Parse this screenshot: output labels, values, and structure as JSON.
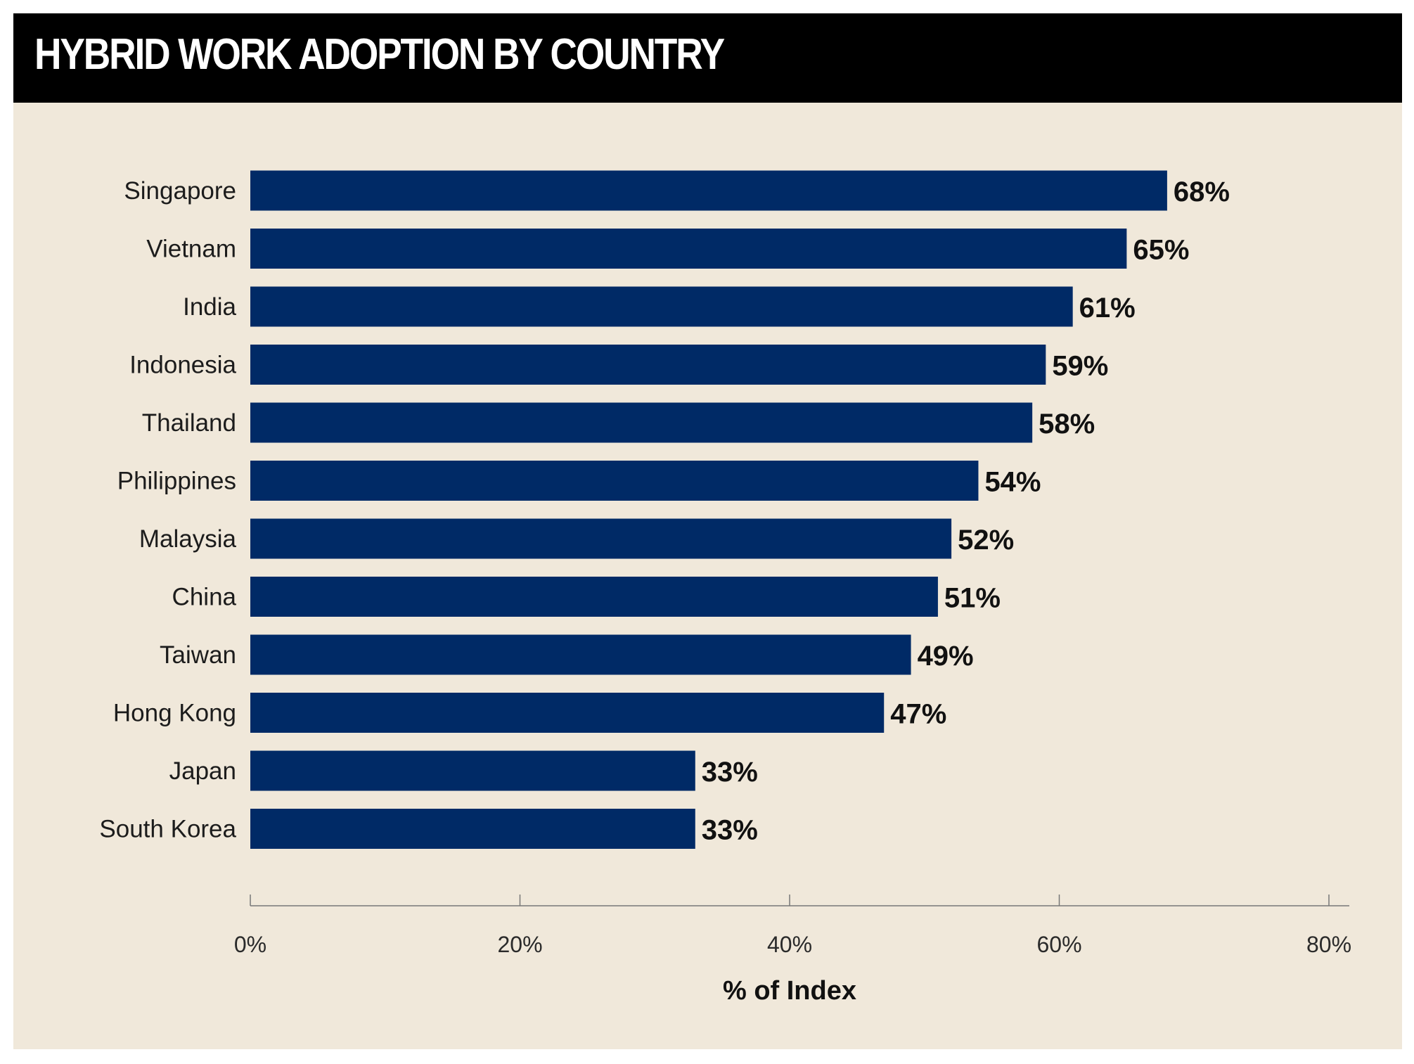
{
  "chart_data": {
    "type": "bar",
    "orientation": "horizontal",
    "title": "HYBRID WORK ADOPTION BY COUNTRY",
    "categories": [
      "Singapore",
      "Vietnam",
      "India",
      "Indonesia",
      "Thailand",
      "Philippines",
      "Malaysia",
      "China",
      "Taiwan",
      "Hong Kong",
      "Japan",
      "South Korea"
    ],
    "values": [
      68,
      65,
      61,
      59,
      58,
      54,
      52,
      51,
      49,
      47,
      33,
      33
    ],
    "value_labels": [
      "68%",
      "65%",
      "61%",
      "59%",
      "58%",
      "54%",
      "52%",
      "51%",
      "49%",
      "47%",
      "33%",
      "33%"
    ],
    "xlabel": "% of Index",
    "ylabel": "",
    "xlim": [
      0,
      80
    ],
    "xticks": [
      0,
      20,
      40,
      60,
      80
    ],
    "xtick_labels": [
      "0%",
      "20%",
      "40%",
      "60%",
      "80%"
    ],
    "grid": false,
    "colors": {
      "bar": "#002a66",
      "background": "#f0e8da",
      "header": "#000000",
      "axis": "#777777"
    }
  }
}
